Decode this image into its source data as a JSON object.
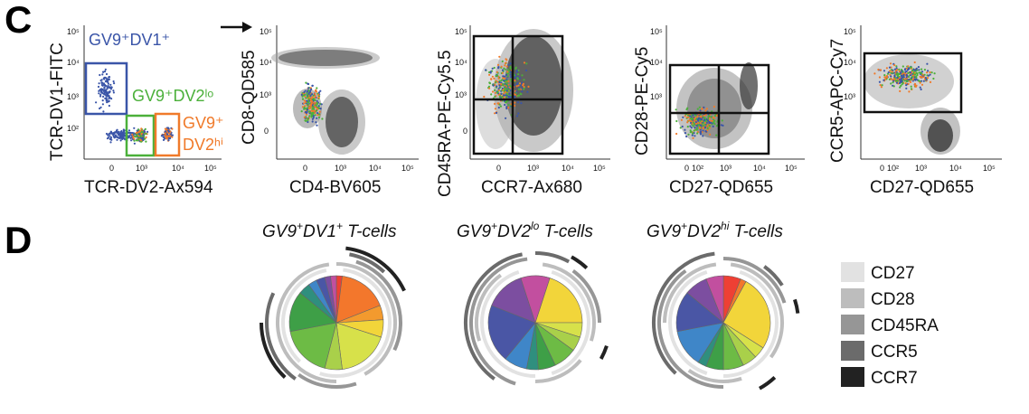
{
  "panels": {
    "c_label": "C",
    "d_label": "D"
  },
  "flow_plots": [
    {
      "xlabel": "TCR-DV2-Ax594",
      "ylabel": "TCR-DV1-FITC",
      "xticks": [
        "0",
        "10³",
        "10⁴",
        "10⁵"
      ],
      "yticks": [
        "10²",
        "10³",
        "10⁴",
        "10⁵"
      ],
      "gates": [
        {
          "label": "GV9⁺DV1⁺",
          "color": "#3a55a8"
        },
        {
          "label": "GV9⁺DV2ˡᵒ",
          "color": "#4bb03a"
        },
        {
          "label_line1": "GV9⁺",
          "label_line2": "DV2ʰⁱ",
          "color": "#f07a2a"
        }
      ]
    },
    {
      "xlabel": "CD4-BV605",
      "ylabel": "CD8-QD585",
      "xticks": [
        "0",
        "10³",
        "10⁴",
        "10⁵"
      ],
      "yticks": [
        "0",
        "10³",
        "10⁴",
        "10⁵"
      ]
    },
    {
      "xlabel": "CCR7-Ax680",
      "ylabel": "CD45RA-PE-Cy5.5",
      "xticks": [
        "0",
        "10³",
        "10⁴",
        "10⁵"
      ],
      "yticks": [
        "0",
        "10³",
        "10⁴",
        "10⁵"
      ]
    },
    {
      "xlabel": "CD27-QD655",
      "ylabel": "CD28-PE-Cy5",
      "xticks": [
        "0",
        "10²",
        "10³",
        "10⁴",
        "10⁵"
      ],
      "yticks": [
        "10³",
        "10⁴",
        "10⁵"
      ]
    },
    {
      "xlabel": "CD27-QD655",
      "ylabel": "CCR5-APC-Cy7",
      "xticks": [
        "0",
        "10²",
        "10³",
        "10⁴",
        "10⁵"
      ],
      "yticks": [
        "10³",
        "10⁴",
        "10⁵"
      ]
    }
  ],
  "pies": [
    {
      "title_main": "GV9",
      "title_sup1": "+",
      "title_mid": "DV1",
      "title_sup2": "+",
      "title_end": " T-cells",
      "slices": [
        {
          "color": "#ee4034",
          "fraction": 0.02
        },
        {
          "color": "#f3772c",
          "fraction": 0.17
        },
        {
          "color": "#f39a2e",
          "fraction": 0.05
        },
        {
          "color": "#f2d53a",
          "fraction": 0.06
        },
        {
          "color": "#d7e14a",
          "fraction": 0.18
        },
        {
          "color": "#a9d04a",
          "fraction": 0.06
        },
        {
          "color": "#6dbb45",
          "fraction": 0.18
        },
        {
          "color": "#3e9f47",
          "fraction": 0.14
        },
        {
          "color": "#2f8f7e",
          "fraction": 0.04
        },
        {
          "color": "#3f86c8",
          "fraction": 0.03
        },
        {
          "color": "#4a56a5",
          "fraction": 0.03
        },
        {
          "color": "#7c4ea0",
          "fraction": 0.02
        },
        {
          "color": "#c24f9f",
          "fraction": 0.02
        }
      ]
    },
    {
      "title_main": "GV9",
      "title_sup1": "+",
      "title_mid": "DV2",
      "title_sup2": "lo",
      "title_end": " T-cells",
      "slices": [
        {
          "color": "#ee4034",
          "fraction": 0.03
        },
        {
          "color": "#f3772c",
          "fraction": 0.02
        },
        {
          "color": "#f2d53a",
          "fraction": 0.2
        },
        {
          "color": "#d7e14a",
          "fraction": 0.05
        },
        {
          "color": "#a9d04a",
          "fraction": 0.05
        },
        {
          "color": "#6dbb45",
          "fraction": 0.08
        },
        {
          "color": "#3e9f47",
          "fraction": 0.06
        },
        {
          "color": "#2f8f7e",
          "fraction": 0.04
        },
        {
          "color": "#3f86c8",
          "fraction": 0.08
        },
        {
          "color": "#4a56a5",
          "fraction": 0.2
        },
        {
          "color": "#7c4ea0",
          "fraction": 0.14
        },
        {
          "color": "#c24f9f",
          "fraction": 0.1
        }
      ]
    },
    {
      "title_main": "GV9",
      "title_sup1": "+",
      "title_mid": "DV2",
      "title_sup2": "hi",
      "title_end": " T-cells",
      "slices": [
        {
          "color": "#ee4034",
          "fraction": 0.06
        },
        {
          "color": "#f3772c",
          "fraction": 0.02
        },
        {
          "color": "#f2d53a",
          "fraction": 0.26
        },
        {
          "color": "#d7e14a",
          "fraction": 0.04
        },
        {
          "color": "#a9d04a",
          "fraction": 0.05
        },
        {
          "color": "#6dbb45",
          "fraction": 0.07
        },
        {
          "color": "#3e9f47",
          "fraction": 0.06
        },
        {
          "color": "#2f8f7e",
          "fraction": 0.03
        },
        {
          "color": "#3f86c8",
          "fraction": 0.13
        },
        {
          "color": "#4a56a5",
          "fraction": 0.14
        },
        {
          "color": "#7c4ea0",
          "fraction": 0.08
        },
        {
          "color": "#c24f9f",
          "fraction": 0.06
        }
      ]
    }
  ],
  "legend": [
    {
      "label": "CD27",
      "color": "#e2e2e2"
    },
    {
      "label": "CD28",
      "color": "#bdbdbd"
    },
    {
      "label": "CD45RA",
      "color": "#969696"
    },
    {
      "label": "CCR5",
      "color": "#6b6b6b"
    },
    {
      "label": "CCR7",
      "color": "#222222"
    }
  ]
}
